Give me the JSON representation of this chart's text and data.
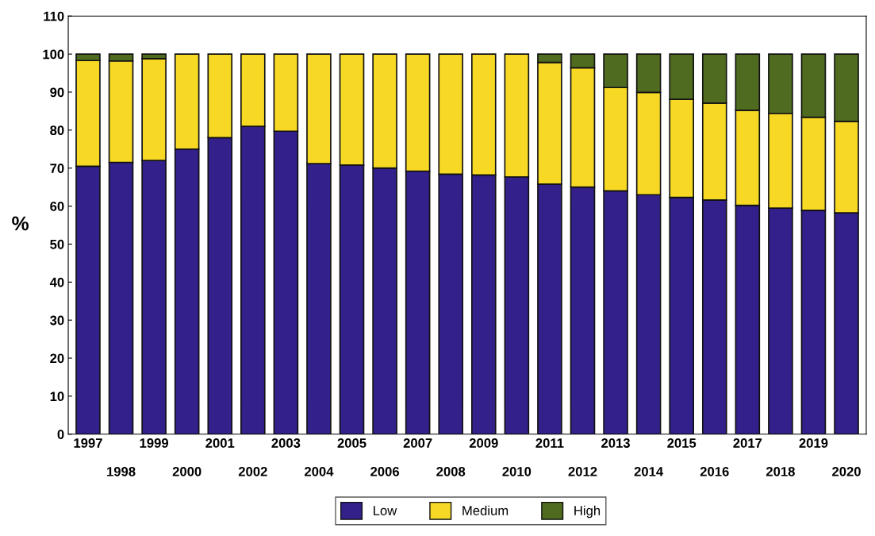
{
  "chart_data": {
    "type": "bar",
    "stacked": true,
    "ylabel": "%",
    "categories": [
      "1997",
      "1998",
      "1999",
      "2000",
      "2001",
      "2002",
      "2003",
      "2004",
      "2005",
      "2006",
      "2007",
      "2008",
      "2009",
      "2010",
      "2011",
      "2012",
      "2013",
      "2014",
      "2015",
      "2016",
      "2017",
      "2018",
      "2019",
      "2020"
    ],
    "series": [
      {
        "name": "Low",
        "color": "#33208a",
        "values": [
          70.5,
          71.5,
          72,
          75,
          78,
          81,
          79.7,
          71.2,
          70.8,
          70,
          69.2,
          68.4,
          68.2,
          67.7,
          65.8,
          65,
          64,
          63,
          62.3,
          61.6,
          60.2,
          59.5,
          58.9,
          58.2
        ]
      },
      {
        "name": "Medium",
        "color": "#f6d825",
        "values": [
          27.8,
          26.7,
          26.8,
          25,
          22,
          19,
          20.3,
          28.8,
          29.2,
          30,
          30.8,
          31.6,
          31.8,
          32.3,
          32,
          31.4,
          27.2,
          26.9,
          25.8,
          25.5,
          25,
          24.9,
          24.5,
          24.1
        ]
      },
      {
        "name": "High",
        "color": "#4f6b1f",
        "values": [
          1.7,
          1.8,
          1.2,
          0,
          0,
          0,
          0,
          0,
          0,
          0,
          0,
          0,
          0,
          0,
          2.2,
          3.6,
          8.8,
          10.1,
          11.9,
          12.9,
          14.8,
          15.6,
          16.6,
          17.7
        ]
      }
    ],
    "ylim": [
      0,
      110
    ],
    "yticks": [
      0,
      10,
      20,
      30,
      40,
      50,
      60,
      70,
      80,
      90,
      100,
      110
    ],
    "grid": false,
    "legend": "bottom"
  }
}
